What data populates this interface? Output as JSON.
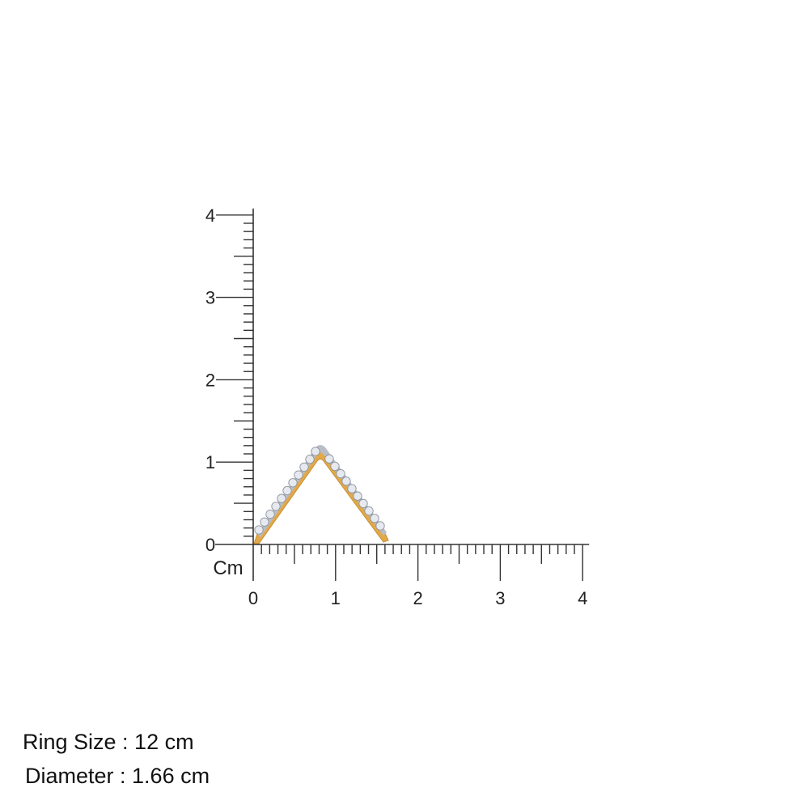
{
  "ruler": {
    "unit_label": "Cm",
    "x_range": [
      0,
      4
    ],
    "y_range": [
      0,
      4
    ],
    "minor_step": 0.1,
    "x_tick_labels": [
      "0",
      "1",
      "2",
      "3",
      "4"
    ],
    "y_tick_labels": [
      "0",
      "1",
      "2",
      "3",
      "4"
    ],
    "line_color": "#333333"
  },
  "product": {
    "metal_color": "#E2A94B",
    "stone_color": "#E6EAF0"
  },
  "info": {
    "ring_size": "Ring Size : 12 cm",
    "diameter": "Diameter : 1.66 cm"
  }
}
